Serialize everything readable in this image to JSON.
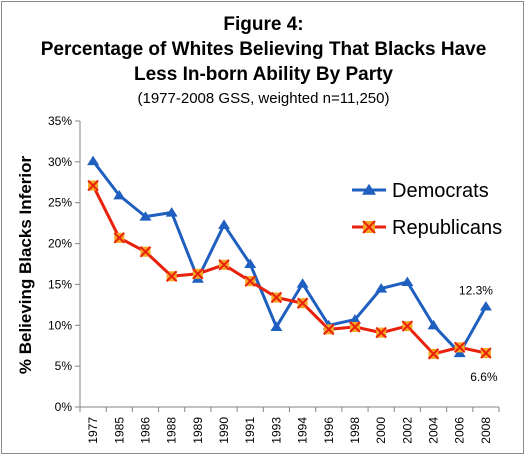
{
  "chart_data": {
    "type": "line",
    "title_lines": [
      "Figure 4:",
      "Percentage of Whites Believing That Blacks Have",
      "Less In-born Ability By Party"
    ],
    "subtitle": "(1977-2008 GSS, weighted n=11,250)",
    "ylabel": "% Believing Blacks Inferior",
    "xlabel": "",
    "categories": [
      "1977",
      "1985",
      "1986",
      "1988",
      "1989",
      "1990",
      "1991",
      "1993",
      "1994",
      "1996",
      "1998",
      "2000",
      "2002",
      "2004",
      "2006",
      "2008"
    ],
    "ylim": [
      0,
      35
    ],
    "yticks": [
      0,
      5,
      10,
      15,
      20,
      25,
      30,
      35
    ],
    "ytick_labels": [
      "0%",
      "5%",
      "10%",
      "15%",
      "20%",
      "25%",
      "30%",
      "35%"
    ],
    "grid": false,
    "legend_position": "right",
    "series": [
      {
        "name": "Democrats",
        "color": "#1f5fbf",
        "marker": "triangle-icon",
        "values": [
          30.1,
          25.9,
          23.3,
          23.8,
          15.7,
          22.3,
          17.5,
          9.8,
          15.1,
          10.0,
          10.7,
          14.5,
          15.3,
          10.0,
          6.6,
          12.3
        ]
      },
      {
        "name": "Republicans",
        "color": "#e8200c",
        "marker": "x-square-icon",
        "values": [
          27.1,
          20.7,
          19.0,
          16.0,
          16.3,
          17.4,
          15.4,
          13.4,
          12.7,
          9.5,
          9.8,
          9.1,
          9.9,
          6.5,
          7.3,
          6.6
        ]
      }
    ],
    "annotations": [
      {
        "text": "12.3%",
        "series": 0,
        "index": 15
      },
      {
        "text": "6.6%",
        "series": 1,
        "index": 15
      }
    ]
  }
}
